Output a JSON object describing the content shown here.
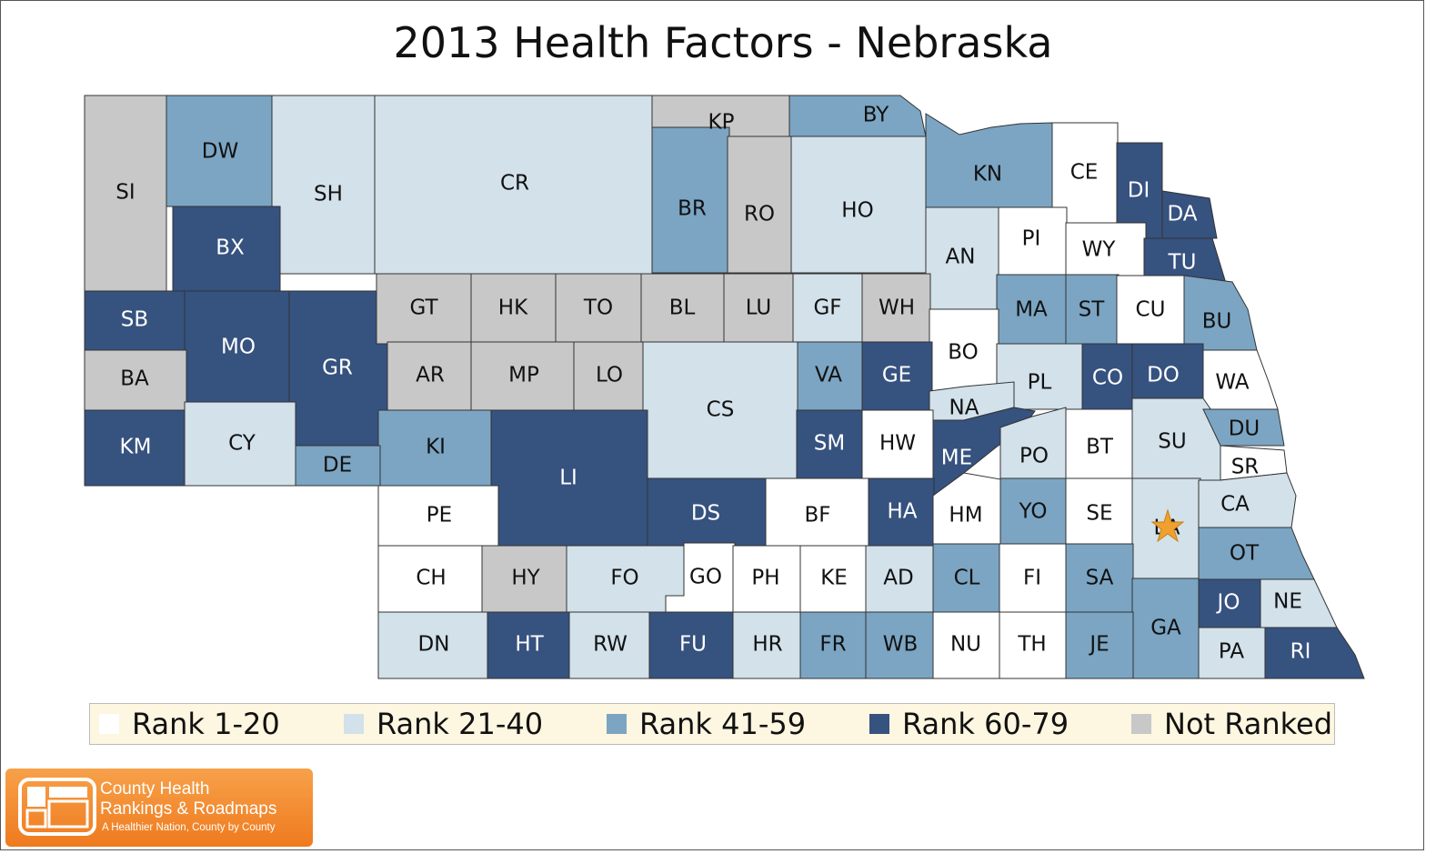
{
  "title": "2013 Health Factors - Nebraska",
  "colors": {
    "rank_1_20": "#ffffff",
    "rank_21_40": "#d2e1ea",
    "rank_41_59": "#7ba5c3",
    "rank_60_79": "#36527f",
    "not_ranked": "#c8c8c8",
    "border": "#333333",
    "star": "#f0a030"
  },
  "legend": [
    {
      "category": "rank_1_20",
      "label": "Rank 1-20"
    },
    {
      "category": "rank_21_40",
      "label": "Rank 21-40"
    },
    {
      "category": "rank_41_59",
      "label": "Rank 41-59"
    },
    {
      "category": "rank_60_79",
      "label": "Rank 60-79"
    },
    {
      "category": "not_ranked",
      "label": "Not Ranked"
    }
  ],
  "counties": [
    {
      "abbr": "SI",
      "category": "not_ranked"
    },
    {
      "abbr": "DW",
      "category": "rank_41_59"
    },
    {
      "abbr": "SH",
      "category": "rank_21_40"
    },
    {
      "abbr": "CR",
      "category": "rank_21_40"
    },
    {
      "abbr": "KP",
      "category": "not_ranked"
    },
    {
      "abbr": "BY",
      "category": "rank_41_59"
    },
    {
      "abbr": "BR",
      "category": "rank_41_59"
    },
    {
      "abbr": "RO",
      "category": "not_ranked"
    },
    {
      "abbr": "HO",
      "category": "rank_21_40"
    },
    {
      "abbr": "KN",
      "category": "rank_41_59"
    },
    {
      "abbr": "CE",
      "category": "rank_1_20"
    },
    {
      "abbr": "DI",
      "category": "rank_60_79"
    },
    {
      "abbr": "DA",
      "category": "rank_60_79"
    },
    {
      "abbr": "BX",
      "category": "rank_60_79"
    },
    {
      "abbr": "AN",
      "category": "rank_21_40"
    },
    {
      "abbr": "PI",
      "category": "rank_1_20"
    },
    {
      "abbr": "WY",
      "category": "rank_1_20"
    },
    {
      "abbr": "TU",
      "category": "rank_60_79"
    },
    {
      "abbr": "SB",
      "category": "rank_60_79"
    },
    {
      "abbr": "MO",
      "category": "rank_60_79"
    },
    {
      "abbr": "GR",
      "category": "rank_60_79"
    },
    {
      "abbr": "GT",
      "category": "not_ranked"
    },
    {
      "abbr": "HK",
      "category": "not_ranked"
    },
    {
      "abbr": "TO",
      "category": "not_ranked"
    },
    {
      "abbr": "BL",
      "category": "not_ranked"
    },
    {
      "abbr": "LU",
      "category": "not_ranked"
    },
    {
      "abbr": "GF",
      "category": "rank_21_40"
    },
    {
      "abbr": "WH",
      "category": "not_ranked"
    },
    {
      "abbr": "MA",
      "category": "rank_41_59"
    },
    {
      "abbr": "ST",
      "category": "rank_41_59"
    },
    {
      "abbr": "CU",
      "category": "rank_1_20"
    },
    {
      "abbr": "BU",
      "category": "rank_41_59"
    },
    {
      "abbr": "BA",
      "category": "not_ranked"
    },
    {
      "abbr": "AR",
      "category": "not_ranked"
    },
    {
      "abbr": "MP",
      "category": "not_ranked"
    },
    {
      "abbr": "LO",
      "category": "not_ranked"
    },
    {
      "abbr": "BO",
      "category": "rank_1_20"
    },
    {
      "abbr": "VA",
      "category": "rank_41_59"
    },
    {
      "abbr": "GE",
      "category": "rank_60_79"
    },
    {
      "abbr": "PL",
      "category": "rank_21_40"
    },
    {
      "abbr": "CO",
      "category": "rank_60_79"
    },
    {
      "abbr": "DO",
      "category": "rank_60_79"
    },
    {
      "abbr": "WA",
      "category": "rank_1_20"
    },
    {
      "abbr": "CS",
      "category": "rank_21_40"
    },
    {
      "abbr": "NA",
      "category": "rank_21_40"
    },
    {
      "abbr": "KM",
      "category": "rank_60_79"
    },
    {
      "abbr": "CY",
      "category": "rank_21_40"
    },
    {
      "abbr": "KI",
      "category": "rank_41_59"
    },
    {
      "abbr": "SM",
      "category": "rank_60_79"
    },
    {
      "abbr": "HW",
      "category": "rank_1_20"
    },
    {
      "abbr": "BT",
      "category": "rank_1_20"
    },
    {
      "abbr": "SU",
      "category": "rank_21_40"
    },
    {
      "abbr": "DU",
      "category": "rank_41_59"
    },
    {
      "abbr": "DE",
      "category": "rank_41_59"
    },
    {
      "abbr": "LI",
      "category": "rank_60_79"
    },
    {
      "abbr": "ME",
      "category": "rank_60_79"
    },
    {
      "abbr": "PO",
      "category": "rank_21_40"
    },
    {
      "abbr": "SR",
      "category": "rank_1_20"
    },
    {
      "abbr": "PE",
      "category": "rank_1_20"
    },
    {
      "abbr": "DS",
      "category": "rank_60_79"
    },
    {
      "abbr": "BF",
      "category": "rank_1_20"
    },
    {
      "abbr": "HA",
      "category": "rank_60_79"
    },
    {
      "abbr": "HM",
      "category": "rank_1_20"
    },
    {
      "abbr": "YO",
      "category": "rank_41_59"
    },
    {
      "abbr": "SE",
      "category": "rank_1_20"
    },
    {
      "abbr": "LA",
      "category": "rank_21_40"
    },
    {
      "abbr": "CA",
      "category": "rank_21_40"
    },
    {
      "abbr": "OT",
      "category": "rank_41_59"
    },
    {
      "abbr": "CH",
      "category": "rank_1_20"
    },
    {
      "abbr": "HY",
      "category": "not_ranked"
    },
    {
      "abbr": "FO",
      "category": "rank_21_40"
    },
    {
      "abbr": "GO",
      "category": "rank_1_20"
    },
    {
      "abbr": "PH",
      "category": "rank_1_20"
    },
    {
      "abbr": "KE",
      "category": "rank_1_20"
    },
    {
      "abbr": "AD",
      "category": "rank_21_40"
    },
    {
      "abbr": "CL",
      "category": "rank_41_59"
    },
    {
      "abbr": "FI",
      "category": "rank_1_20"
    },
    {
      "abbr": "SA",
      "category": "rank_41_59"
    },
    {
      "abbr": "JO",
      "category": "rank_60_79"
    },
    {
      "abbr": "NE",
      "category": "rank_21_40"
    },
    {
      "abbr": "GA",
      "category": "rank_41_59"
    },
    {
      "abbr": "DN",
      "category": "rank_21_40"
    },
    {
      "abbr": "HT",
      "category": "rank_60_79"
    },
    {
      "abbr": "RW",
      "category": "rank_21_40"
    },
    {
      "abbr": "FU",
      "category": "rank_60_79"
    },
    {
      "abbr": "HR",
      "category": "rank_21_40"
    },
    {
      "abbr": "FR",
      "category": "rank_41_59"
    },
    {
      "abbr": "WB",
      "category": "rank_41_59"
    },
    {
      "abbr": "NU",
      "category": "rank_1_20"
    },
    {
      "abbr": "TH",
      "category": "rank_1_20"
    },
    {
      "abbr": "JE",
      "category": "rank_41_59"
    },
    {
      "abbr": "PA",
      "category": "rank_21_40"
    },
    {
      "abbr": "RI",
      "category": "rank_60_79"
    }
  ],
  "marker": {
    "icon": "star-icon",
    "county": "LA"
  },
  "logo": {
    "icon": "county-map-logo-icon",
    "line1": "County Health",
    "line2": "Rankings & Roadmaps",
    "tagline": "A Healthier Nation, County by County"
  }
}
